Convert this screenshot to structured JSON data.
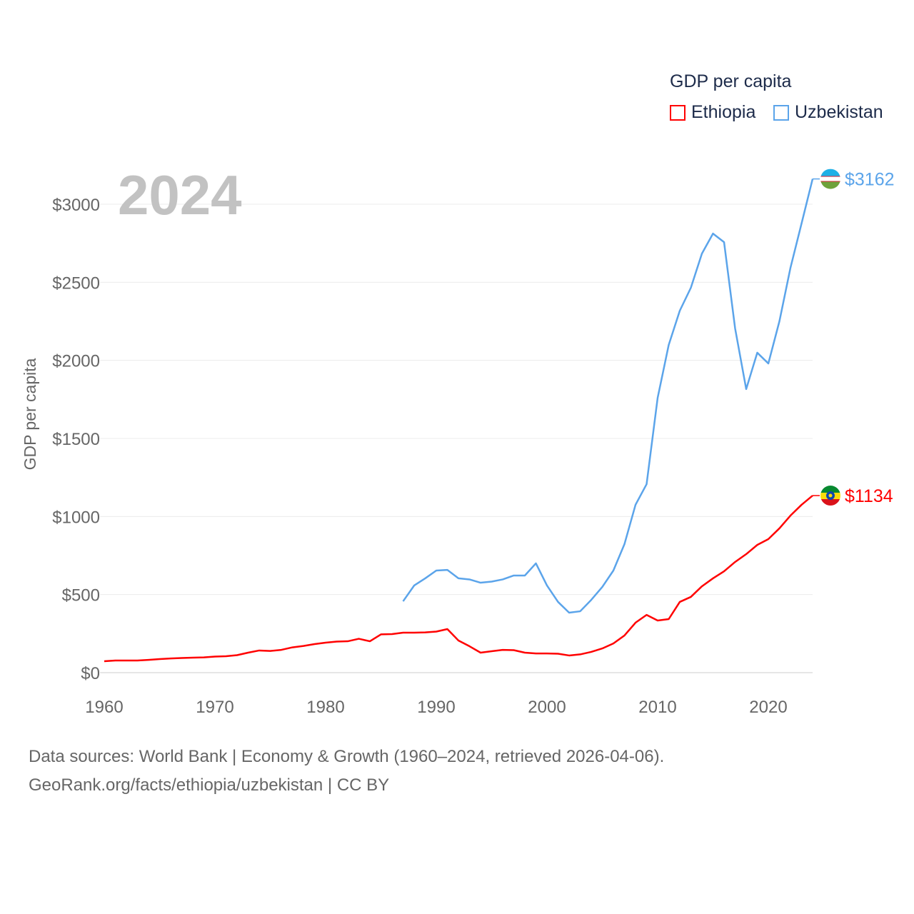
{
  "chart_data": {
    "type": "line",
    "title": "GDP per capita",
    "year_label": "2024",
    "ylabel": "GDP per capita",
    "xlabel": "",
    "xlim": [
      1960,
      2024
    ],
    "ylim": [
      0,
      3000
    ],
    "x_ticks": [
      1960,
      1970,
      1980,
      1990,
      2000,
      2010,
      2020
    ],
    "x_tick_labels": [
      "1960",
      "1970",
      "1980",
      "1990",
      "2000",
      "2010",
      "2020"
    ],
    "y_ticks": [
      0,
      500,
      1000,
      1500,
      2000,
      2500,
      3000
    ],
    "y_tick_labels": [
      "$0",
      "$500",
      "$1000",
      "$1500",
      "$2000",
      "$2500",
      "$3000"
    ],
    "grid": true,
    "legend_position": "top-right",
    "series": [
      {
        "name": "Ethiopia",
        "color": "#ff0000",
        "end_label": "$1134",
        "start_year": 1960,
        "values": [
          73,
          78,
          78,
          78,
          82,
          87,
          91,
          94,
          96,
          98,
          103,
          105,
          112,
          128,
          142,
          139,
          146,
          162,
          171,
          183,
          192,
          199,
          201,
          217,
          201,
          245,
          247,
          256,
          256,
          258,
          263,
          279,
          206,
          169,
          128,
          137,
          146,
          144,
          128,
          123,
          123,
          121,
          110,
          117,
          133,
          155,
          187,
          238,
          320,
          370,
          334,
          343,
          453,
          485,
          553,
          604,
          649,
          709,
          759,
          818,
          855,
          924,
          1006,
          1075,
          1134
        ]
      },
      {
        "name": "Uzbekistan",
        "color": "#5ba4ea",
        "end_label": "$3162",
        "start_year": 1987,
        "values": [
          457,
          558,
          604,
          654,
          658,
          604,
          597,
          576,
          583,
          597,
          622,
          622,
          700,
          558,
          453,
          384,
          393,
          466,
          549,
          654,
          823,
          1075,
          1207,
          1760,
          2099,
          2318,
          2465,
          2684,
          2812,
          2757,
          2204,
          1816,
          2049,
          1980,
          2250,
          2593,
          2876,
          3162
        ]
      }
    ]
  },
  "footer": {
    "line1": "Data sources: World Bank | Economy & Growth (1960–2024, retrieved 2026-04-06).",
    "line2": "GeoRank.org/facts/ethiopia/uzbekistan | CC BY"
  }
}
